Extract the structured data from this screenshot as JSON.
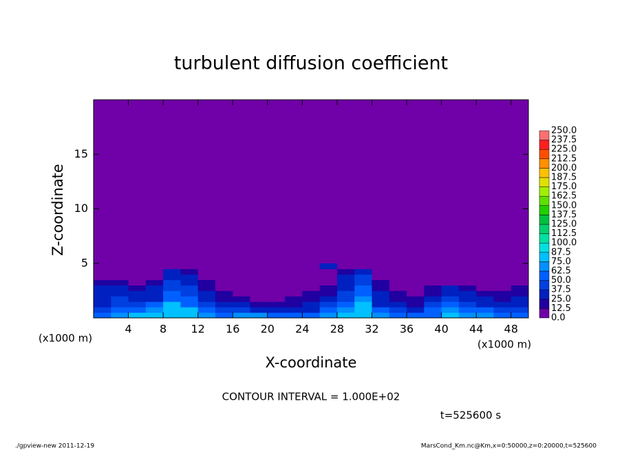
{
  "chart_data": {
    "type": "contour",
    "title": "turbulent diffusion coefficient",
    "x_label": "X-coordinate",
    "y_label": "Z-coordinate",
    "x_unit": "(x1000 m)",
    "contour_interval": "CONTOUR INTERVAL = 1.000E+02",
    "time_label": "t=525600 s",
    "footer_left": "./gpview-new  2011-12-19",
    "footer_right": "MarsCond_Km.nc@Km,x=0:50000,z=0:20000,t=525600",
    "xlim": [
      0,
      50
    ],
    "ylim": [
      0,
      20
    ],
    "xticks": [
      4,
      8,
      12,
      16,
      20,
      24,
      28,
      32,
      36,
      40,
      44,
      48
    ],
    "yticks": [
      5,
      10,
      15
    ],
    "background_value": 0,
    "levels": [
      {
        "value": 0,
        "label": "0.0"
      },
      {
        "value": 12.5,
        "label": "12.5"
      },
      {
        "value": 25,
        "label": "25.0"
      },
      {
        "value": 37.5,
        "label": "37.5"
      },
      {
        "value": 50,
        "label": "50.0"
      },
      {
        "value": 62.5,
        "label": "62.5"
      },
      {
        "value": 75,
        "label": "75.0"
      },
      {
        "value": 87.5,
        "label": "87.5"
      },
      {
        "value": 100,
        "label": "100.0"
      },
      {
        "value": 112.5,
        "label": "112.5"
      },
      {
        "value": 125,
        "label": "125.0"
      },
      {
        "value": 137.5,
        "label": "137.5"
      },
      {
        "value": 150,
        "label": "150.0"
      },
      {
        "value": 162.5,
        "label": "162.5"
      },
      {
        "value": 175,
        "label": "175.0"
      },
      {
        "value": 187.5,
        "label": "187.5"
      },
      {
        "value": 200,
        "label": "200.0"
      },
      {
        "value": 212.5,
        "label": "212.5"
      },
      {
        "value": 225,
        "label": "225.0"
      },
      {
        "value": 237.5,
        "label": "237.5"
      },
      {
        "value": 250,
        "label": "250.0"
      }
    ],
    "colors": [
      "#7000a8",
      "#2000a0",
      "#0020c0",
      "#0040e0",
      "#0060ff",
      "#0090ff",
      "#00c0ff",
      "#00e0e0",
      "#00e0a0",
      "#00d070",
      "#00c040",
      "#20d000",
      "#60e000",
      "#a0f000",
      "#e0e000",
      "#ffc000",
      "#ff9000",
      "#ff5000",
      "#ff2020",
      "#ff7070"
    ],
    "x": [
      1,
      3,
      5,
      7,
      9,
      11,
      13,
      15,
      17,
      19,
      21,
      23,
      25,
      27,
      29,
      31,
      33,
      35,
      37,
      39,
      41,
      43,
      45,
      47,
      49
    ],
    "y": [
      0.25,
      0.75,
      1.25,
      1.75,
      2.25,
      2.75,
      3.25,
      3.75,
      4.25,
      4.75
    ],
    "z": [
      [
        60,
        70,
        75,
        80,
        85,
        80,
        70,
        60,
        70,
        65,
        60,
        55,
        60,
        70,
        80,
        85,
        70,
        60,
        55,
        60,
        75,
        70,
        65,
        60,
        55
      ],
      [
        45,
        55,
        60,
        70,
        80,
        75,
        55,
        45,
        40,
        35,
        30,
        30,
        35,
        50,
        65,
        80,
        50,
        40,
        35,
        50,
        70,
        60,
        50,
        45,
        40
      ],
      [
        35,
        45,
        40,
        50,
        75,
        60,
        40,
        30,
        25,
        20,
        15,
        20,
        25,
        40,
        55,
        75,
        35,
        25,
        20,
        40,
        60,
        45,
        35,
        30,
        30
      ],
      [
        30,
        40,
        30,
        35,
        60,
        50,
        30,
        20,
        15,
        10,
        10,
        15,
        20,
        30,
        45,
        65,
        30,
        20,
        15,
        30,
        45,
        35,
        25,
        20,
        25
      ],
      [
        30,
        35,
        25,
        30,
        50,
        45,
        25,
        15,
        10,
        5,
        5,
        10,
        15,
        20,
        40,
        55,
        25,
        15,
        10,
        20,
        35,
        25,
        15,
        15,
        20
      ],
      [
        25,
        30,
        20,
        25,
        45,
        40,
        20,
        10,
        5,
        0,
        0,
        5,
        10,
        15,
        35,
        50,
        20,
        10,
        5,
        15,
        25,
        15,
        10,
        10,
        15
      ],
      [
        15,
        20,
        10,
        15,
        40,
        35,
        15,
        5,
        0,
        0,
        0,
        0,
        5,
        10,
        30,
        45,
        15,
        5,
        0,
        5,
        10,
        5,
        5,
        5,
        5
      ],
      [
        0,
        0,
        0,
        10,
        35,
        30,
        5,
        0,
        0,
        0,
        0,
        0,
        0,
        5,
        25,
        40,
        0,
        0,
        0,
        0,
        0,
        0,
        0,
        0,
        0
      ],
      [
        0,
        0,
        0,
        5,
        25,
        20,
        0,
        0,
        0,
        0,
        0,
        0,
        0,
        0,
        15,
        35,
        0,
        0,
        0,
        0,
        0,
        0,
        0,
        0,
        0
      ],
      [
        0,
        0,
        0,
        0,
        10,
        10,
        0,
        0,
        0,
        0,
        0,
        0,
        0,
        25,
        0,
        0,
        0,
        0,
        0,
        0,
        0,
        0,
        0,
        0,
        0
      ]
    ]
  }
}
